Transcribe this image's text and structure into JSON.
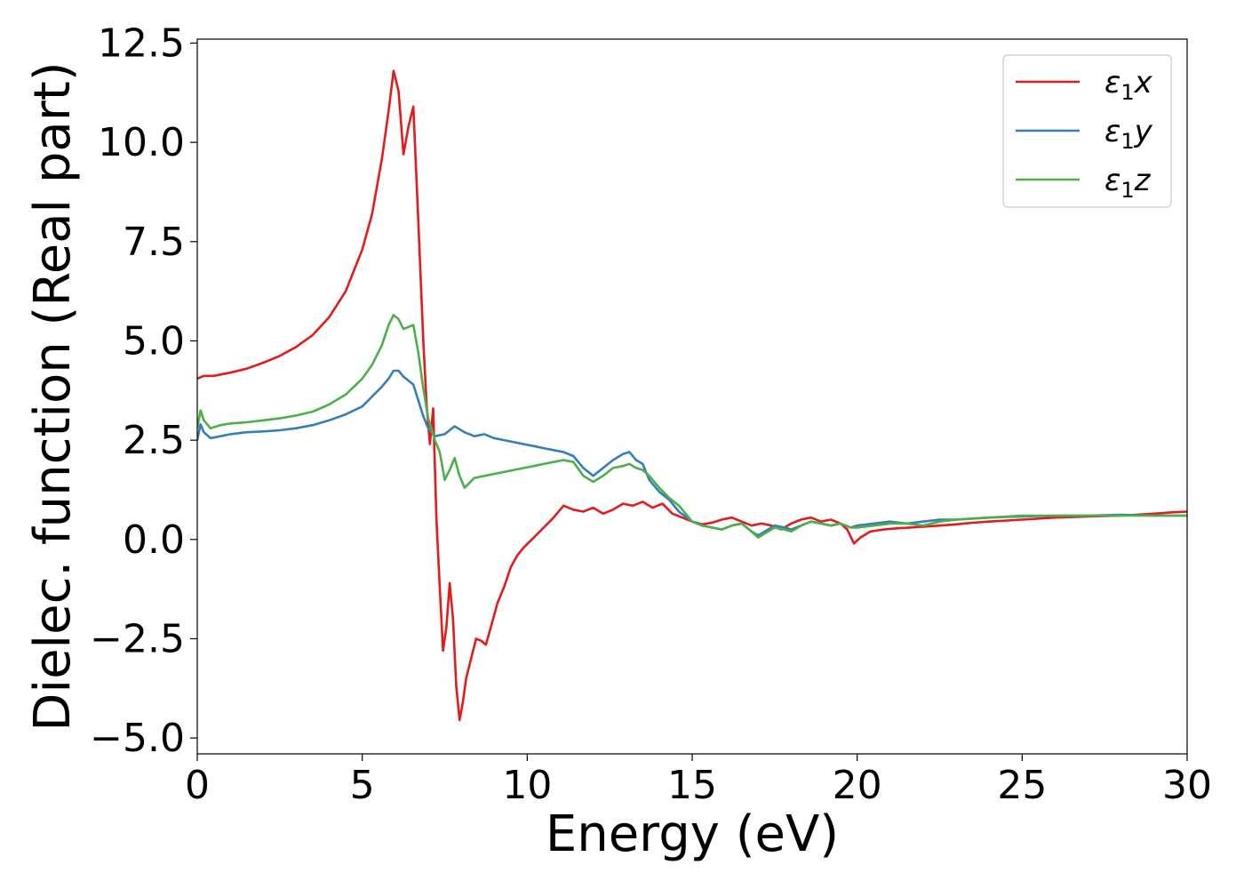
{
  "chart_data": {
    "type": "line",
    "xlabel": "Energy (eV)",
    "ylabel": "Dielec. function (Real part)",
    "xlim": [
      0,
      30
    ],
    "ylim": [
      -5.4,
      12.6
    ],
    "xticks": [
      0,
      5,
      10,
      15,
      20,
      25,
      30
    ],
    "xtick_labels": [
      "0",
      "5",
      "10",
      "15",
      "20",
      "25",
      "30"
    ],
    "yticks": [
      -5.0,
      -2.5,
      0.0,
      2.5,
      5.0,
      7.5,
      10.0,
      12.5
    ],
    "ytick_labels": [
      "−5.0",
      "−2.5",
      "0.0",
      "2.5",
      "5.0",
      "7.5",
      "10.0",
      "12.5"
    ],
    "grid": false,
    "legend_position": "top-right",
    "series": [
      {
        "name": "ε1x",
        "color": "#e41a1c",
        "x": [
          0,
          0.2,
          0.5,
          1,
          1.5,
          2,
          2.5,
          3,
          3.5,
          4,
          4.5,
          5,
          5.3,
          5.6,
          5.8,
          5.95,
          6.1,
          6.25,
          6.4,
          6.55,
          6.7,
          6.85,
          6.95,
          7.05,
          7.15,
          7.25,
          7.35,
          7.45,
          7.55,
          7.65,
          7.75,
          7.85,
          7.95,
          8.05,
          8.15,
          8.3,
          8.45,
          8.6,
          8.75,
          8.9,
          9.1,
          9.3,
          9.5,
          9.7,
          9.9,
          10.2,
          10.5,
          10.8,
          11.1,
          11.4,
          11.7,
          12,
          12.3,
          12.6,
          12.9,
          13.2,
          13.5,
          13.8,
          14.1,
          14.4,
          14.7,
          15,
          15.3,
          15.6,
          15.9,
          16.2,
          16.5,
          16.8,
          17.1,
          17.4,
          17.7,
          18,
          18.3,
          18.6,
          18.9,
          19.2,
          19.5,
          19.7,
          19.9,
          20.1,
          20.4,
          20.8,
          21.2,
          21.6,
          22,
          22.5,
          23,
          23.5,
          24,
          25,
          26,
          27,
          28,
          29,
          29.5,
          30
        ],
        "y": [
          4.05,
          4.12,
          4.12,
          4.2,
          4.3,
          4.45,
          4.62,
          4.85,
          5.15,
          5.6,
          6.25,
          7.3,
          8.2,
          9.6,
          10.8,
          11.8,
          11.3,
          9.7,
          10.4,
          10.9,
          8.0,
          5.0,
          3.4,
          2.4,
          3.3,
          0.5,
          -1.2,
          -2.8,
          -2.2,
          -1.1,
          -2.0,
          -3.7,
          -4.55,
          -4.1,
          -3.5,
          -3.0,
          -2.5,
          -2.55,
          -2.65,
          -2.2,
          -1.6,
          -1.2,
          -0.7,
          -0.4,
          -0.2,
          0.05,
          0.3,
          0.55,
          0.85,
          0.75,
          0.7,
          0.8,
          0.65,
          0.75,
          0.9,
          0.85,
          0.95,
          0.8,
          0.9,
          0.65,
          0.55,
          0.45,
          0.38,
          0.42,
          0.5,
          0.55,
          0.45,
          0.35,
          0.4,
          0.35,
          0.25,
          0.4,
          0.5,
          0.55,
          0.45,
          0.5,
          0.4,
          0.25,
          -0.1,
          0.05,
          0.2,
          0.25,
          0.28,
          0.3,
          0.32,
          0.35,
          0.38,
          0.42,
          0.45,
          0.5,
          0.55,
          0.58,
          0.6,
          0.65,
          0.68,
          0.7
        ]
      },
      {
        "name": "ε1y",
        "color": "#377eb8",
        "x": [
          0,
          0.1,
          0.2,
          0.4,
          0.7,
          1,
          1.5,
          2,
          2.5,
          3,
          3.5,
          4,
          4.5,
          5,
          5.3,
          5.6,
          5.8,
          5.95,
          6.1,
          6.25,
          6.4,
          6.55,
          6.7,
          6.85,
          7,
          7.2,
          7.5,
          7.8,
          8.1,
          8.4,
          8.7,
          9,
          9.3,
          9.6,
          9.9,
          10.2,
          10.5,
          10.8,
          11.1,
          11.4,
          11.7,
          12,
          12.3,
          12.6,
          12.9,
          13.1,
          13.3,
          13.5,
          13.7,
          14,
          14.3,
          14.6,
          15,
          15.3,
          15.6,
          15.9,
          16.2,
          16.5,
          16.8,
          17,
          17.2,
          17.5,
          17.8,
          18,
          18.3,
          18.6,
          18.9,
          19.2,
          19.5,
          19.8,
          20,
          20.5,
          21,
          21.5,
          22,
          22.5,
          23,
          24,
          25,
          26,
          27,
          28,
          29,
          30
        ],
        "y": [
          2.5,
          2.9,
          2.7,
          2.55,
          2.6,
          2.65,
          2.7,
          2.72,
          2.75,
          2.8,
          2.88,
          3.0,
          3.15,
          3.35,
          3.6,
          3.85,
          4.05,
          4.25,
          4.25,
          4.1,
          4.0,
          3.9,
          3.5,
          3.1,
          2.8,
          2.6,
          2.65,
          2.85,
          2.7,
          2.6,
          2.65,
          2.55,
          2.5,
          2.45,
          2.4,
          2.35,
          2.3,
          2.25,
          2.2,
          2.1,
          1.8,
          1.6,
          1.8,
          2.0,
          2.15,
          2.2,
          2.0,
          1.9,
          1.5,
          1.2,
          1.0,
          0.7,
          0.45,
          0.35,
          0.3,
          0.25,
          0.35,
          0.4,
          0.2,
          0.1,
          0.2,
          0.35,
          0.3,
          0.25,
          0.35,
          0.45,
          0.4,
          0.35,
          0.4,
          0.3,
          0.35,
          0.4,
          0.45,
          0.4,
          0.45,
          0.5,
          0.5,
          0.55,
          0.58,
          0.6,
          0.6,
          0.62,
          0.6,
          0.6
        ]
      },
      {
        "name": "ε1z",
        "color": "#4daf4a",
        "x": [
          0,
          0.1,
          0.2,
          0.4,
          0.7,
          1,
          1.5,
          2,
          2.5,
          3,
          3.5,
          4,
          4.5,
          5,
          5.3,
          5.6,
          5.8,
          5.95,
          6.1,
          6.25,
          6.4,
          6.55,
          6.7,
          6.85,
          7,
          7.2,
          7.35,
          7.5,
          7.65,
          7.8,
          7.95,
          8.1,
          8.4,
          8.7,
          9,
          9.3,
          9.6,
          9.9,
          10.2,
          10.5,
          10.8,
          11.1,
          11.4,
          11.7,
          12,
          12.3,
          12.6,
          12.9,
          13.1,
          13.3,
          13.5,
          13.7,
          14,
          14.3,
          14.6,
          15,
          15.3,
          15.6,
          15.9,
          16.2,
          16.5,
          16.8,
          17,
          17.2,
          17.5,
          17.8,
          18,
          18.3,
          18.6,
          18.9,
          19.2,
          19.5,
          19.8,
          20,
          20.5,
          21,
          21.5,
          22,
          22.5,
          23,
          24,
          25,
          26,
          27,
          28,
          29,
          30
        ],
        "y": [
          2.8,
          3.25,
          3.0,
          2.8,
          2.88,
          2.92,
          2.95,
          3.0,
          3.05,
          3.12,
          3.22,
          3.4,
          3.65,
          4.05,
          4.4,
          4.9,
          5.4,
          5.65,
          5.55,
          5.3,
          5.35,
          5.4,
          4.7,
          3.8,
          3.05,
          2.5,
          2.2,
          1.5,
          1.75,
          2.05,
          1.6,
          1.3,
          1.55,
          1.6,
          1.65,
          1.7,
          1.75,
          1.8,
          1.85,
          1.9,
          1.95,
          2.0,
          1.95,
          1.6,
          1.45,
          1.6,
          1.8,
          1.85,
          1.9,
          1.8,
          1.75,
          1.6,
          1.3,
          1.05,
          0.85,
          0.45,
          0.35,
          0.3,
          0.25,
          0.35,
          0.4,
          0.2,
          0.05,
          0.15,
          0.3,
          0.25,
          0.2,
          0.35,
          0.45,
          0.4,
          0.35,
          0.4,
          0.3,
          0.3,
          0.35,
          0.4,
          0.4,
          0.35,
          0.45,
          0.5,
          0.55,
          0.6,
          0.6,
          0.6,
          0.6,
          0.6,
          0.6
        ]
      }
    ]
  }
}
